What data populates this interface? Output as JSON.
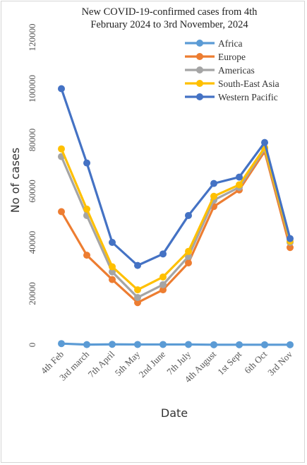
{
  "chart_data": {
    "type": "line",
    "title_lines": [
      "New COVID-19-confirmed cases from 4th",
      "February 2024 to 3rd November, 2024"
    ],
    "xlabel": "Date",
    "ylabel": "No of cases",
    "ylim": [
      0,
      120000
    ],
    "yticks": [
      "0",
      "20000",
      "40000",
      "60000",
      "80000",
      "100000",
      "120000"
    ],
    "categories": [
      "4th Feb",
      "3rd march",
      "7th April",
      "5th May",
      "2nd June",
      "7th July",
      "4th August",
      "1st Sept",
      "6th Oct",
      "3rd Nov"
    ],
    "grid": false,
    "legend_position": "top-right",
    "series": [
      {
        "name": "Africa",
        "color": "#5b9bd5",
        "values": [
          500,
          100,
          200,
          150,
          150,
          150,
          50,
          50,
          50,
          50
        ]
      },
      {
        "name": "Europe",
        "color": "#ed7d31",
        "values": [
          52000,
          35000,
          25500,
          16500,
          21500,
          32000,
          54000,
          60500,
          75500,
          38000
        ]
      },
      {
        "name": "Americas",
        "color": "#a5a5a5",
        "values": [
          73500,
          50500,
          28500,
          18500,
          23500,
          34500,
          56500,
          61500,
          76500,
          40000
        ]
      },
      {
        "name": "South-East Asia",
        "color": "#ffc000",
        "values": [
          76500,
          53000,
          30500,
          21500,
          26500,
          36500,
          58000,
          62500,
          77000,
          40500
        ]
      },
      {
        "name": "Western Pacific",
        "color": "#4472c4",
        "values": [
          100000,
          71000,
          40000,
          31000,
          35500,
          50500,
          63000,
          65500,
          79000,
          41500
        ]
      }
    ]
  }
}
